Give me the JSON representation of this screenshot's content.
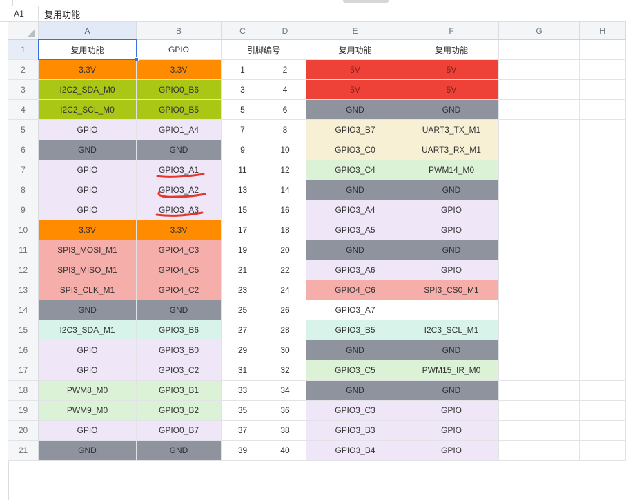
{
  "window": {
    "name_box": "A1",
    "formula_bar_value": "复用功能"
  },
  "palette": {
    "orange": "#FF8C00",
    "yellowgreen": "#A9C714",
    "lavender": "#EFE7F8",
    "gray": "#8E939D",
    "red": "#EE4238",
    "cream": "#F8F0D5",
    "lightgreen": "#DCF2D6",
    "pink": "#F6AEAB",
    "mint": "#D7F3EA",
    "white": "#FFFFFF",
    "selection_blue": "#3B6FDF",
    "annotation_red": "#E8352A"
  },
  "sheet": {
    "column_headers": [
      "A",
      "B",
      "C",
      "D",
      "E",
      "F",
      "G",
      "H"
    ],
    "selected_cell": "A1",
    "selected_column": "A",
    "selected_row": "1",
    "row1": {
      "num": "1",
      "a": "复用功能",
      "b": "GPIO",
      "cd": "引脚编号",
      "e": "复用功能",
      "f": "复用功能"
    },
    "rows": [
      {
        "num": "2",
        "cells": [
          [
            "3.3V",
            "orange"
          ],
          [
            "3.3V",
            "orange"
          ],
          [
            "1",
            "white"
          ],
          [
            "2",
            "white"
          ],
          [
            "5V",
            "red"
          ],
          [
            "5V",
            "red"
          ]
        ]
      },
      {
        "num": "3",
        "cells": [
          [
            "I2C2_SDA_M0",
            "yellowgreen"
          ],
          [
            "GPIO0_B6",
            "yellowgreen"
          ],
          [
            "3",
            "white"
          ],
          [
            "4",
            "white"
          ],
          [
            "5V",
            "red"
          ],
          [
            "5V",
            "red"
          ]
        ]
      },
      {
        "num": "4",
        "cells": [
          [
            "I2C2_SCL_M0",
            "yellowgreen"
          ],
          [
            "GPIO0_B5",
            "yellowgreen"
          ],
          [
            "5",
            "white"
          ],
          [
            "6",
            "white"
          ],
          [
            "GND",
            "gray"
          ],
          [
            "GND",
            "gray"
          ]
        ]
      },
      {
        "num": "5",
        "cells": [
          [
            "GPIO",
            "lavender"
          ],
          [
            "GPIO1_A4",
            "lavender"
          ],
          [
            "7",
            "white"
          ],
          [
            "8",
            "white"
          ],
          [
            "GPIO3_B7",
            "cream"
          ],
          [
            "UART3_TX_M1",
            "cream"
          ]
        ]
      },
      {
        "num": "6",
        "cells": [
          [
            "GND",
            "gray"
          ],
          [
            "GND",
            "gray"
          ],
          [
            "9",
            "white"
          ],
          [
            "10",
            "white"
          ],
          [
            "GPIO3_C0",
            "cream"
          ],
          [
            "UART3_RX_M1",
            "cream"
          ]
        ]
      },
      {
        "num": "7",
        "cells": [
          [
            "GPIO",
            "lavender"
          ],
          [
            "GPIO3_A1",
            "lavender"
          ],
          [
            "11",
            "white"
          ],
          [
            "12",
            "white"
          ],
          [
            "GPIO3_C4",
            "lightgreen"
          ],
          [
            "PWM14_M0",
            "lightgreen"
          ]
        ]
      },
      {
        "num": "8",
        "cells": [
          [
            "GPIO",
            "lavender"
          ],
          [
            "GPIO3_A2",
            "lavender"
          ],
          [
            "13",
            "white"
          ],
          [
            "14",
            "white"
          ],
          [
            "GND",
            "gray"
          ],
          [
            "GND",
            "gray"
          ]
        ]
      },
      {
        "num": "9",
        "cells": [
          [
            "GPIO",
            "lavender"
          ],
          [
            "GPIO3_A3",
            "lavender"
          ],
          [
            "15",
            "white"
          ],
          [
            "16",
            "white"
          ],
          [
            "GPIO3_A4",
            "lavender"
          ],
          [
            "GPIO",
            "lavender"
          ]
        ]
      },
      {
        "num": "10",
        "cells": [
          [
            "3.3V",
            "orange"
          ],
          [
            "3.3V",
            "orange"
          ],
          [
            "17",
            "white"
          ],
          [
            "18",
            "white"
          ],
          [
            "GPIO3_A5",
            "lavender"
          ],
          [
            "GPIO",
            "lavender"
          ]
        ]
      },
      {
        "num": "11",
        "cells": [
          [
            "SPI3_MOSI_M1",
            "pink"
          ],
          [
            "GPIO4_C3",
            "pink"
          ],
          [
            "19",
            "white"
          ],
          [
            "20",
            "white"
          ],
          [
            "GND",
            "gray"
          ],
          [
            "GND",
            "gray"
          ]
        ]
      },
      {
        "num": "12",
        "cells": [
          [
            "SPI3_MISO_M1",
            "pink"
          ],
          [
            "GPIO4_C5",
            "pink"
          ],
          [
            "21",
            "white"
          ],
          [
            "22",
            "white"
          ],
          [
            "GPIO3_A6",
            "lavender"
          ],
          [
            "GPIO",
            "lavender"
          ]
        ]
      },
      {
        "num": "13",
        "cells": [
          [
            "SPI3_CLK_M1",
            "pink"
          ],
          [
            "GPIO4_C2",
            "pink"
          ],
          [
            "23",
            "white"
          ],
          [
            "24",
            "white"
          ],
          [
            "GPIO4_C6",
            "pink"
          ],
          [
            "SPI3_CS0_M1",
            "pink"
          ]
        ]
      },
      {
        "num": "14",
        "cells": [
          [
            "GND",
            "gray"
          ],
          [
            "GND",
            "gray"
          ],
          [
            "25",
            "white"
          ],
          [
            "26",
            "white"
          ],
          [
            "GPIO3_A7",
            "white"
          ],
          [
            "",
            "white"
          ]
        ]
      },
      {
        "num": "15",
        "cells": [
          [
            "I2C3_SDA_M1",
            "mint"
          ],
          [
            "GPIO3_B6",
            "mint"
          ],
          [
            "27",
            "white"
          ],
          [
            "28",
            "white"
          ],
          [
            "GPIO3_B5",
            "mint"
          ],
          [
            "I2C3_SCL_M1",
            "mint"
          ]
        ]
      },
      {
        "num": "16",
        "cells": [
          [
            "GPIO",
            "lavender"
          ],
          [
            "GPIO3_B0",
            "lavender"
          ],
          [
            "29",
            "white"
          ],
          [
            "30",
            "white"
          ],
          [
            "GND",
            "gray"
          ],
          [
            "GND",
            "gray"
          ]
        ]
      },
      {
        "num": "17",
        "cells": [
          [
            "GPIO",
            "lavender"
          ],
          [
            "GPIO3_C2",
            "lavender"
          ],
          [
            "31",
            "white"
          ],
          [
            "32",
            "white"
          ],
          [
            "GPIO3_C5",
            "lightgreen"
          ],
          [
            "PWM15_IR_M0",
            "lightgreen"
          ]
        ]
      },
      {
        "num": "18",
        "cells": [
          [
            "PWM8_M0",
            "lightgreen"
          ],
          [
            "GPIO3_B1",
            "lightgreen"
          ],
          [
            "33",
            "white"
          ],
          [
            "34",
            "white"
          ],
          [
            "GND",
            "gray"
          ],
          [
            "GND",
            "gray"
          ]
        ]
      },
      {
        "num": "19",
        "cells": [
          [
            "PWM9_M0",
            "lightgreen"
          ],
          [
            "GPIO3_B2",
            "lightgreen"
          ],
          [
            "35",
            "white"
          ],
          [
            "36",
            "white"
          ],
          [
            "GPIO3_C3",
            "lavender"
          ],
          [
            "GPIO",
            "lavender"
          ]
        ]
      },
      {
        "num": "20",
        "cells": [
          [
            "GPIO",
            "lavender"
          ],
          [
            "GPIO0_B7",
            "lavender"
          ],
          [
            "37",
            "white"
          ],
          [
            "38",
            "white"
          ],
          [
            "GPIO3_B3",
            "lavender"
          ],
          [
            "GPIO",
            "lavender"
          ]
        ]
      },
      {
        "num": "21",
        "cells": [
          [
            "GND",
            "gray"
          ],
          [
            "GND",
            "gray"
          ],
          [
            "39",
            "white"
          ],
          [
            "40",
            "white"
          ],
          [
            "GPIO3_B4",
            "lavender"
          ],
          [
            "GPIO",
            "lavender"
          ]
        ]
      }
    ]
  },
  "annotations": {
    "red_underlines": {
      "targets": [
        "GPIO3_A1",
        "GPIO3_A2",
        "GPIO3_A3"
      ],
      "paths": [
        "M228,255 C245,258 268,256 295,252",
        "M231,278 C226,284 240,286 256,285 C272,285 286,283 297,281",
        "M227,311 C250,314 272,312 293,308"
      ]
    }
  }
}
